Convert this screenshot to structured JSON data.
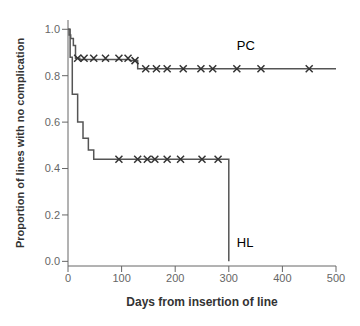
{
  "chart_data": {
    "type": "line",
    "xlabel": "Days from insertion of line",
    "ylabel": "Proportion of lines with no complication",
    "xlim": [
      0,
      500
    ],
    "ylim": [
      -0.02,
      1.04
    ],
    "xticks": [
      0,
      100,
      200,
      300,
      400,
      500
    ],
    "yticks": [
      {
        "value": 0,
        "label": "0.0"
      },
      0.2,
      0.4,
      0.6,
      0.8,
      {
        "value": 1,
        "label": "1.0"
      }
    ],
    "series": [
      {
        "type": "line",
        "color": "#555555",
        "x": [
          0,
          2,
          2,
          5,
          5,
          10,
          10,
          14,
          14,
          22,
          22,
          115,
          115,
          130,
          130,
          500
        ],
        "values": [
          1.0,
          1.0,
          0.975,
          0.975,
          0.96,
          0.96,
          0.93,
          0.93,
          0.875,
          0.875,
          0.87,
          0.87,
          0.865,
          0.865,
          0.83,
          0.83
        ]
      },
      {
        "type": "line",
        "color": "#555555",
        "x": [
          0,
          4,
          4,
          8,
          8,
          18,
          18,
          28,
          28,
          38,
          38,
          48,
          48,
          300,
          300
        ],
        "values": [
          1.0,
          1.0,
          0.88,
          0.88,
          0.72,
          0.72,
          0.6,
          0.6,
          0.53,
          0.53,
          0.48,
          0.48,
          0.44,
          0.44,
          0.0
        ]
      },
      {
        "type": "scatter",
        "marker": "x",
        "color": "#333333",
        "x": [
          18,
          30,
          48,
          70,
          95,
          112,
          125,
          145,
          165,
          185,
          215,
          248,
          270,
          315,
          360,
          450
        ],
        "values": [
          0.875,
          0.875,
          0.875,
          0.875,
          0.875,
          0.875,
          0.865,
          0.83,
          0.83,
          0.83,
          0.83,
          0.83,
          0.83,
          0.83,
          0.83,
          0.83
        ]
      },
      {
        "type": "scatter",
        "marker": "x",
        "color": "#333333",
        "x": [
          95,
          130,
          148,
          162,
          185,
          210,
          250,
          280
        ],
        "values": [
          0.44,
          0.44,
          0.44,
          0.44,
          0.44,
          0.44,
          0.44,
          0.44
        ]
      }
    ],
    "annotations": [
      {
        "text": "PC",
        "x": 315,
        "y": 0.93
      },
      {
        "text": "HL",
        "x": 315,
        "y": 0.08
      }
    ]
  }
}
